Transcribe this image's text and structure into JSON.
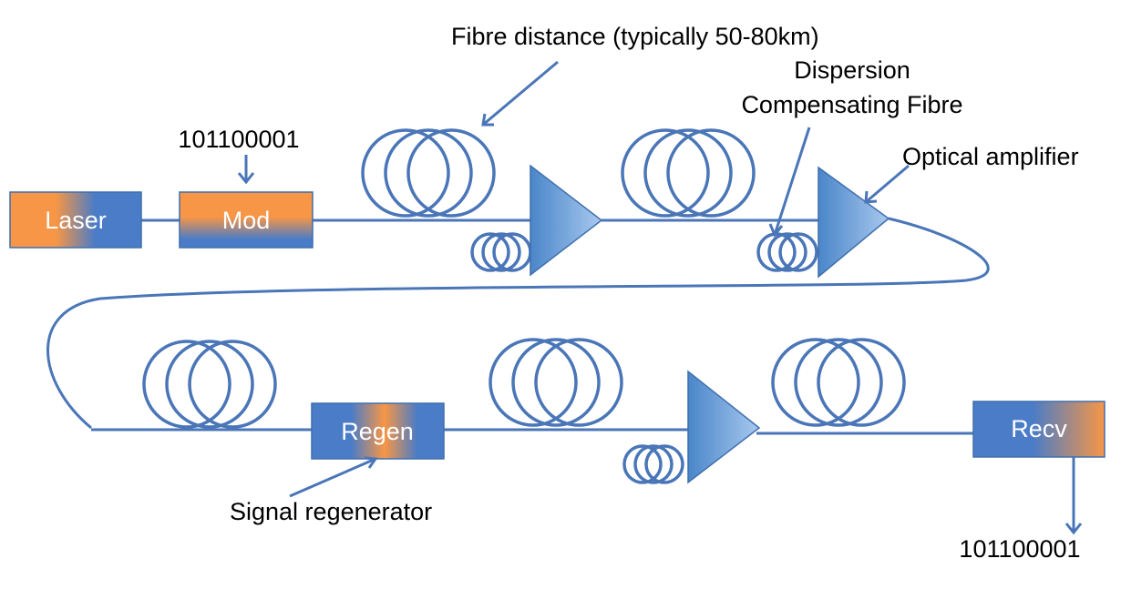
{
  "labels": {
    "fibre_distance": "Fibre distance (typically 50-80km)",
    "dispersion_line1": "Dispersion",
    "dispersion_line2": "Compensating Fibre",
    "optical_amplifier": "Optical amplifier",
    "signal_regenerator": "Signal regenerator",
    "input_bits": "101100001",
    "output_bits": "101100001"
  },
  "boxes": {
    "laser": "Laser",
    "mod": "Mod",
    "regen": "Regen",
    "recv": "Recv"
  },
  "colors": {
    "line": "#4a76b8",
    "box_blue": "#4a7cc7",
    "box_orange": "#f79646",
    "amplifier_dark": "#4a86c9",
    "amplifier_light": "#a8c8ee"
  }
}
